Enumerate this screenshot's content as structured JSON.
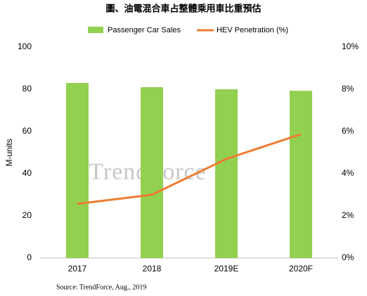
{
  "chart_data": {
    "type": "bar",
    "title": "圖、油電混合車占整體乘用車比重預估",
    "categories": [
      "2017",
      "2018",
      "2019E",
      "2020F"
    ],
    "series": [
      {
        "name": "Passenger Car Sales",
        "type": "bar",
        "color": "#92d050",
        "values": [
          83,
          81,
          80,
          79.3
        ]
      },
      {
        "name": "HEV Penetration (%)",
        "type": "line",
        "axis": "y2",
        "color": "#ed7d31",
        "values": [
          2.57,
          3.0,
          4.7,
          5.87
        ]
      }
    ],
    "ylabel": "M-units",
    "ylim": [
      0,
      100
    ],
    "yticks": [
      0,
      20,
      40,
      60,
      80,
      100
    ],
    "y2lim": [
      0,
      10
    ],
    "y2ticks": [
      {
        "value": 0,
        "label": "0%"
      },
      {
        "value": 2,
        "label": "2%"
      },
      {
        "value": 4,
        "label": "4%"
      },
      {
        "value": 6,
        "label": "6%"
      },
      {
        "value": 8,
        "label": "8%"
      },
      {
        "value": 10,
        "label": "10%"
      }
    ],
    "source": "Source: TrendForce, Aug., 2019",
    "watermark": "TrendForce",
    "grid": false
  }
}
